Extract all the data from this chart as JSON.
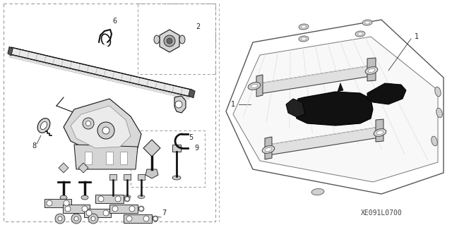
{
  "background_color": "#ffffff",
  "figure_width": 6.4,
  "figure_height": 3.19,
  "dpi": 100,
  "diagram_code": "XE091L0700",
  "font_size_callout": 7,
  "font_size_code": 6,
  "line_color": "#444444",
  "dashed_line_color": "#888888",
  "dark": "#111111",
  "mid": "#666666",
  "light": "#aaaaaa",
  "gray": "#cccccc"
}
